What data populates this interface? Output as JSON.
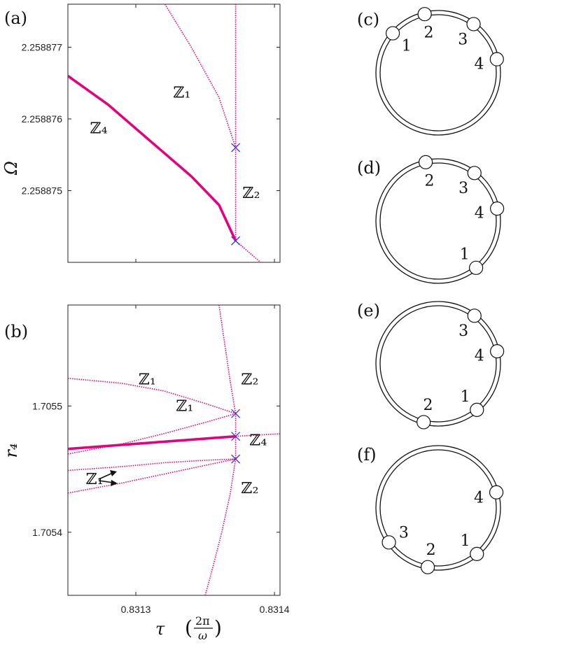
{
  "chart_data": [
    {
      "type": "line",
      "panel_label": "(a)",
      "ylabel": "Ω",
      "y_ticks": [
        {
          "value": 2.258877,
          "label": "2.258877"
        },
        {
          "value": 2.258876,
          "label": "2.258876"
        },
        {
          "value": 2.258875,
          "label": "2.258875"
        }
      ],
      "xlim": [
        0.831251,
        0.831404
      ],
      "ylim": [
        2.258874,
        2.2588776
      ],
      "series": [
        {
          "name": "ℤ₄",
          "style": "solid",
          "points": [
            [
              0.831251,
              2.2588766
            ],
            [
              0.83128,
              2.2588762
            ],
            [
              0.83131,
              2.2588757
            ],
            [
              0.83134,
              2.2588752
            ],
            [
              0.83136,
              2.2588748
            ],
            [
              0.831372,
              2.2588743
            ]
          ]
        },
        {
          "style": "dotted",
          "points": [
            [
              0.831372,
              2.2588743
            ],
            [
              0.83139,
              2.258874
            ]
          ]
        },
        {
          "name": "ℤ₁",
          "style": "dotted",
          "points": [
            [
              0.831321,
              2.2588776
            ],
            [
              0.83134,
              2.258877
            ],
            [
              0.83136,
              2.2588763
            ],
            [
              0.831372,
              2.2588756
            ]
          ]
        },
        {
          "name": "ℤ₂",
          "style": "dotted",
          "points": [
            [
              0.831372,
              2.2588776
            ],
            [
              0.831372,
              2.2588743
            ]
          ]
        }
      ],
      "bifurcation_points": [
        [
          0.831372,
          2.2588756
        ],
        [
          0.831372,
          2.2588743
        ]
      ],
      "annotations": [
        {
          "text": "ℤ₁",
          "x": 0.831327,
          "y": 2.2588763
        },
        {
          "text": "ℤ₄",
          "x": 0.831267,
          "y": 2.2588758
        },
        {
          "text": "ℤ₂",
          "x": 0.831377,
          "y": 2.2588749
        }
      ]
    },
    {
      "type": "line",
      "panel_label": "(b)",
      "ylabel": "r₄",
      "xlabel": "τ",
      "xlabel_unit": "2π / ω",
      "x_ticks": [
        {
          "value": 0.8313,
          "label": "0.8313"
        },
        {
          "value": 0.8314,
          "label": "0.8314"
        }
      ],
      "y_ticks": [
        {
          "value": 1.7055,
          "label": "1.7055"
        },
        {
          "value": 1.7054,
          "label": "1.7054"
        }
      ],
      "xlim": [
        0.831251,
        0.831404
      ],
      "ylim": [
        1.70535,
        1.70558
      ],
      "series": [
        {
          "name": "ℤ₄",
          "style": "solid",
          "points": [
            [
              0.831251,
              1.705466
            ],
            [
              0.831372,
              1.705476
            ]
          ]
        },
        {
          "style": "dotted",
          "points": [
            [
              0.831372,
              1.705476
            ],
            [
              0.831404,
              1.705478
            ]
          ]
        },
        {
          "name": "ℤ₁",
          "style": "dotted",
          "points": [
            [
              0.831251,
              1.705522
            ],
            [
              0.83129,
              1.705518
            ],
            [
              0.83132,
              1.705512
            ],
            [
              0.83135,
              1.705502
            ],
            [
              0.831372,
              1.705494
            ]
          ]
        },
        {
          "name": "ℤ₁",
          "style": "dotted",
          "points": [
            [
              0.831251,
              1.705462
            ],
            [
              0.83129,
              1.70547
            ],
            [
              0.83132,
              1.705478
            ],
            [
              0.83135,
              1.705487
            ],
            [
              0.831372,
              1.705494
            ]
          ]
        },
        {
          "name": "ℤ₁",
          "style": "dotted",
          "points": [
            [
              0.831251,
              1.705449
            ],
            [
              0.83129,
              1.705452
            ],
            [
              0.83132,
              1.705455
            ],
            [
              0.83135,
              1.705457
            ],
            [
              0.831372,
              1.705458
            ]
          ]
        },
        {
          "name": "ℤ₁",
          "style": "dotted",
          "points": [
            [
              0.831251,
              1.705431
            ],
            [
              0.83129,
              1.705439
            ],
            [
              0.83132,
              1.705446
            ],
            [
              0.83135,
              1.705453
            ],
            [
              0.831372,
              1.705458
            ]
          ]
        },
        {
          "name": "ℤ₂",
          "style": "dotted",
          "points": [
            [
              0.83136,
              1.70558
            ],
            [
              0.831364,
              1.70555
            ],
            [
              0.831368,
              1.70552
            ],
            [
              0.831372,
              1.705494
            ]
          ]
        },
        {
          "style": "dotted",
          "points": [
            [
              0.831372,
              1.705494
            ],
            [
              0.831372,
              1.705458
            ]
          ]
        },
        {
          "name": "ℤ₂",
          "style": "dotted",
          "points": [
            [
              0.831372,
              1.705458
            ],
            [
              0.831368,
              1.70543
            ],
            [
              0.831362,
              1.7054
            ],
            [
              0.831355,
              1.70537
            ],
            [
              0.83135,
              1.70535
            ]
          ]
        }
      ],
      "bifurcation_points": [
        [
          0.831372,
          1.705494
        ],
        [
          0.831372,
          1.705476
        ],
        [
          0.831372,
          1.705458
        ]
      ],
      "annotations": [
        {
          "text": "ℤ₁",
          "x": 0.831302,
          "y": 1.705517
        },
        {
          "text": "ℤ₂",
          "x": 0.831376,
          "y": 1.705517
        },
        {
          "text": "ℤ₁",
          "x": 0.831329,
          "y": 1.705496
        },
        {
          "text": "ℤ₄",
          "x": 0.831382,
          "y": 1.705469
        },
        {
          "text": "ℤ₁",
          "x": 0.831264,
          "y": 1.705438
        },
        {
          "text": "ℤ₂",
          "x": 0.831376,
          "y": 1.705431
        }
      ]
    }
  ],
  "ring_panels": [
    {
      "label": "(c)",
      "nodes": [
        {
          "n": "1",
          "angle": 229
        },
        {
          "n": "2",
          "angle": 193
        },
        {
          "n": "3",
          "angle": 144
        },
        {
          "n": "4",
          "angle": 103
        }
      ]
    },
    {
      "label": "(d)",
      "nodes": [
        {
          "n": "2",
          "angle": 192
        },
        {
          "n": "3",
          "angle": 143
        },
        {
          "n": "4",
          "angle": 102
        },
        {
          "n": "1",
          "angle": 39
        }
      ]
    },
    {
      "label": "(e)",
      "nodes": [
        {
          "n": "3",
          "angle": 143
        },
        {
          "n": "4",
          "angle": 102
        },
        {
          "n": "1",
          "angle": 40
        },
        {
          "n": "2",
          "angle": 346
        }
      ]
    },
    {
      "label": "(f)",
      "nodes": [
        {
          "n": "4",
          "angle": 105
        },
        {
          "n": "1",
          "angle": 40
        },
        {
          "n": "2",
          "angle": 350
        },
        {
          "n": "3",
          "angle": 305
        }
      ]
    }
  ]
}
